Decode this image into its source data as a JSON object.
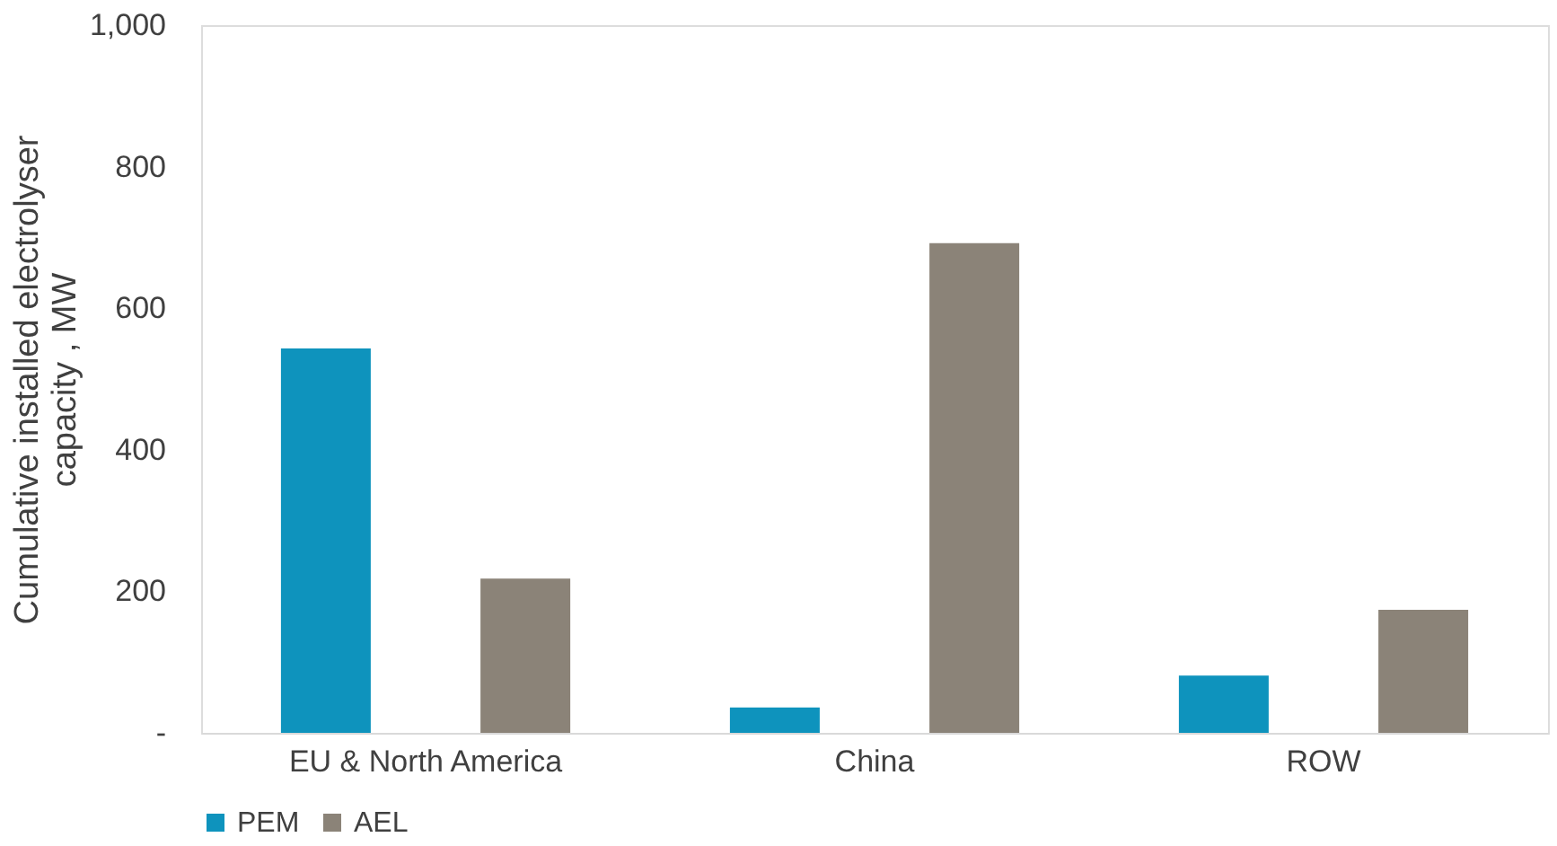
{
  "chart_data": {
    "type": "bar",
    "ylabel": "Cumulative installed electrolyser capacity , MW",
    "categories": [
      "EU & North America",
      "China",
      "ROW"
    ],
    "series": [
      {
        "name": "PEM",
        "color": "#0e93bd",
        "values": [
          543,
          36,
          81
        ]
      },
      {
        "name": "AEL",
        "color": "#8b8378",
        "values": [
          218,
          692,
          174
        ]
      }
    ],
    "ylim": [
      0,
      1000
    ],
    "yticks": [
      {
        "value": 0,
        "label": "-"
      },
      200,
      400,
      600,
      800,
      {
        "value": 1000,
        "label": "1,000"
      }
    ],
    "grid": false,
    "legend": "bottom"
  }
}
